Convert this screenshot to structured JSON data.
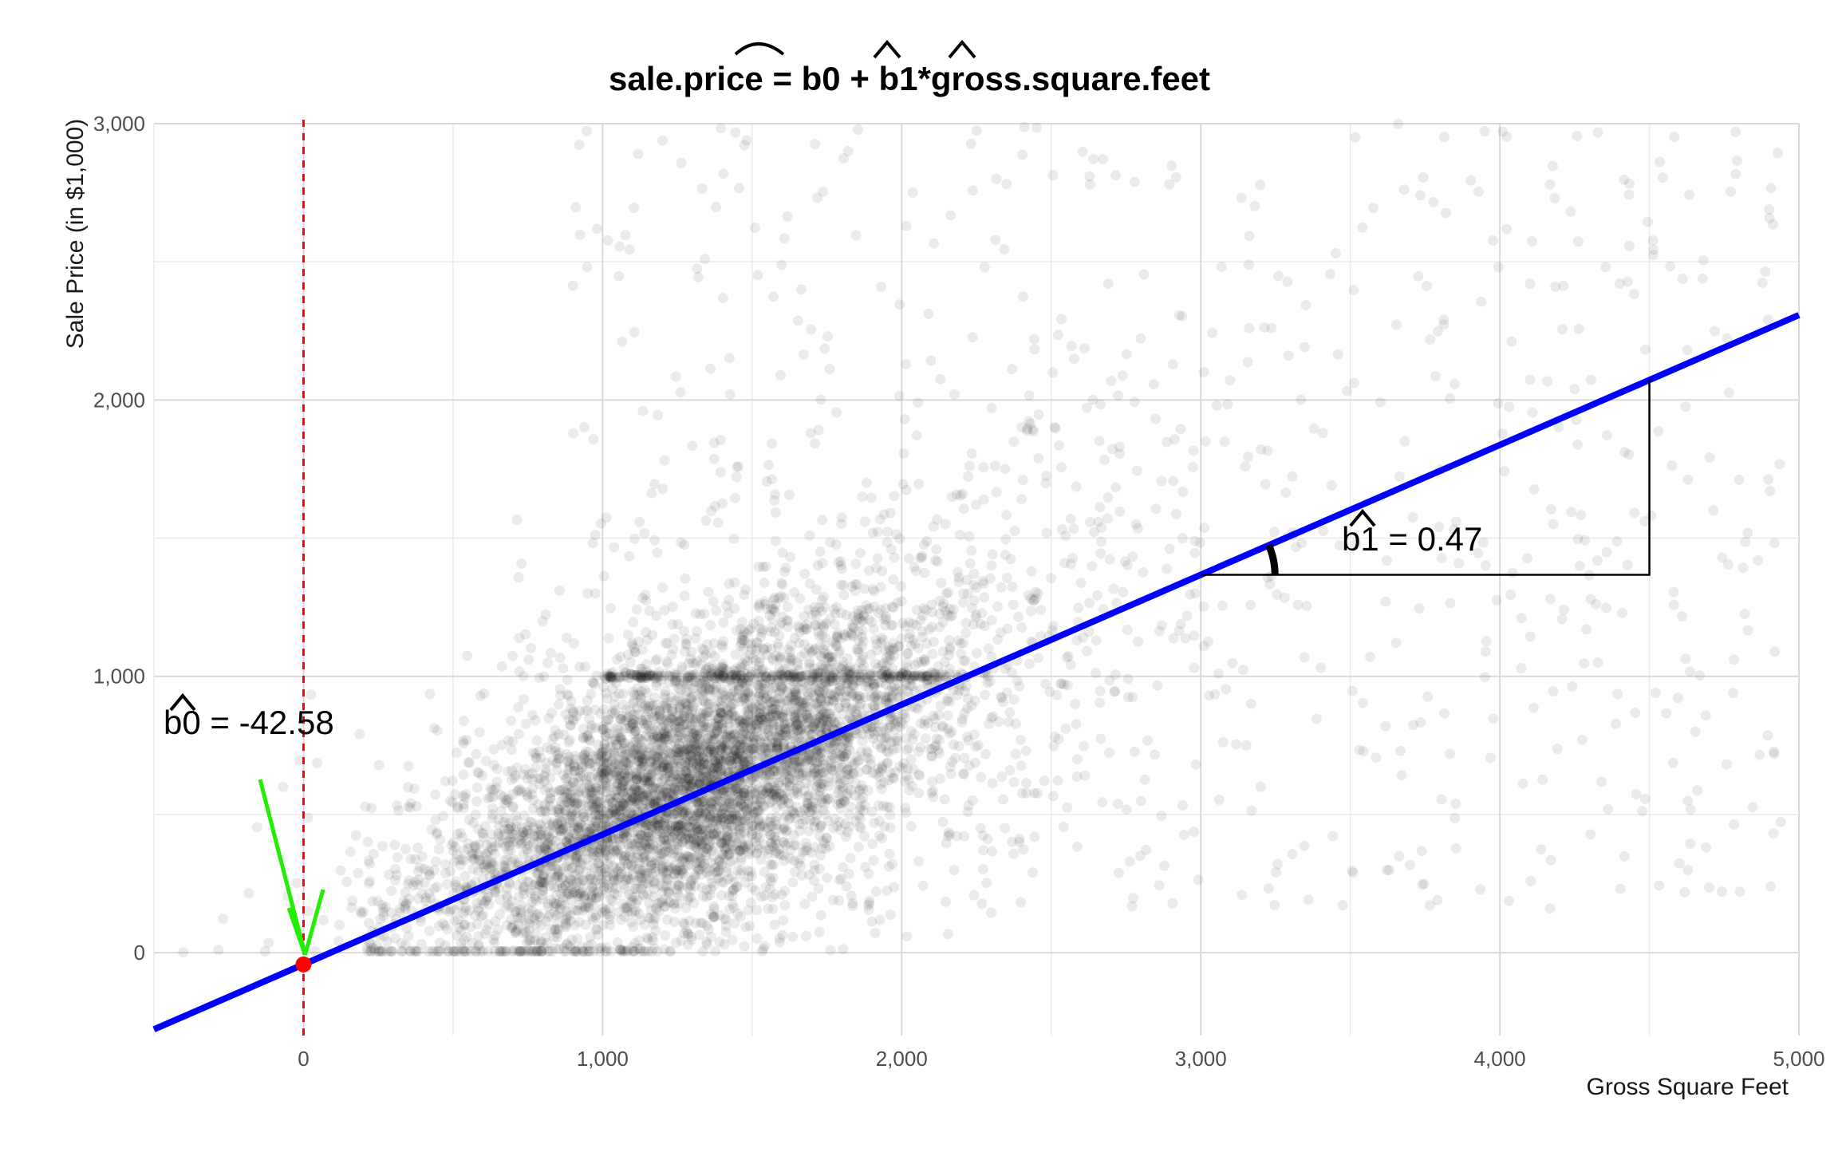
{
  "chart_data": {
    "type": "scatter",
    "title": "sale.price = b0 + b1*gross.square.feet",
    "title_hats": [
      "sale.price",
      "b0",
      "b1"
    ],
    "xlabel": "Gross Square Feet",
    "ylabel": "Sale Price (in $1,000)",
    "xlim": [
      -500,
      5000
    ],
    "ylim": [
      -300,
      3000
    ],
    "x_ticks": [
      0,
      1000,
      2000,
      3000,
      4000,
      5000
    ],
    "x_tick_labels": [
      "0",
      "1,000",
      "2,000",
      "3,000",
      "4,000",
      "5,000"
    ],
    "y_ticks": [
      0,
      1000,
      2000,
      3000
    ],
    "y_tick_labels": [
      "0",
      "1,000",
      "2,000",
      "3,000"
    ],
    "grid": true,
    "points": {
      "opacity": 0.08,
      "color": "#000000",
      "note": "approx. 15000 housing sales; dense cluster near 1,000–2,000 sq ft and 200–1,000 ($1,000)"
    },
    "regression_line": {
      "intercept": -42.58,
      "slope": 0.47,
      "color": "#0000ff"
    },
    "annotations": {
      "intercept_label": "b0 = -42.58",
      "slope_label": "b1 = 0.47",
      "intercept_marker_color": "#ff0000",
      "arrow_color": "#22ee00",
      "vline_color": "#ff0000",
      "slope_triangle": {
        "x_start": 3000,
        "x_end": 4500
      }
    }
  }
}
